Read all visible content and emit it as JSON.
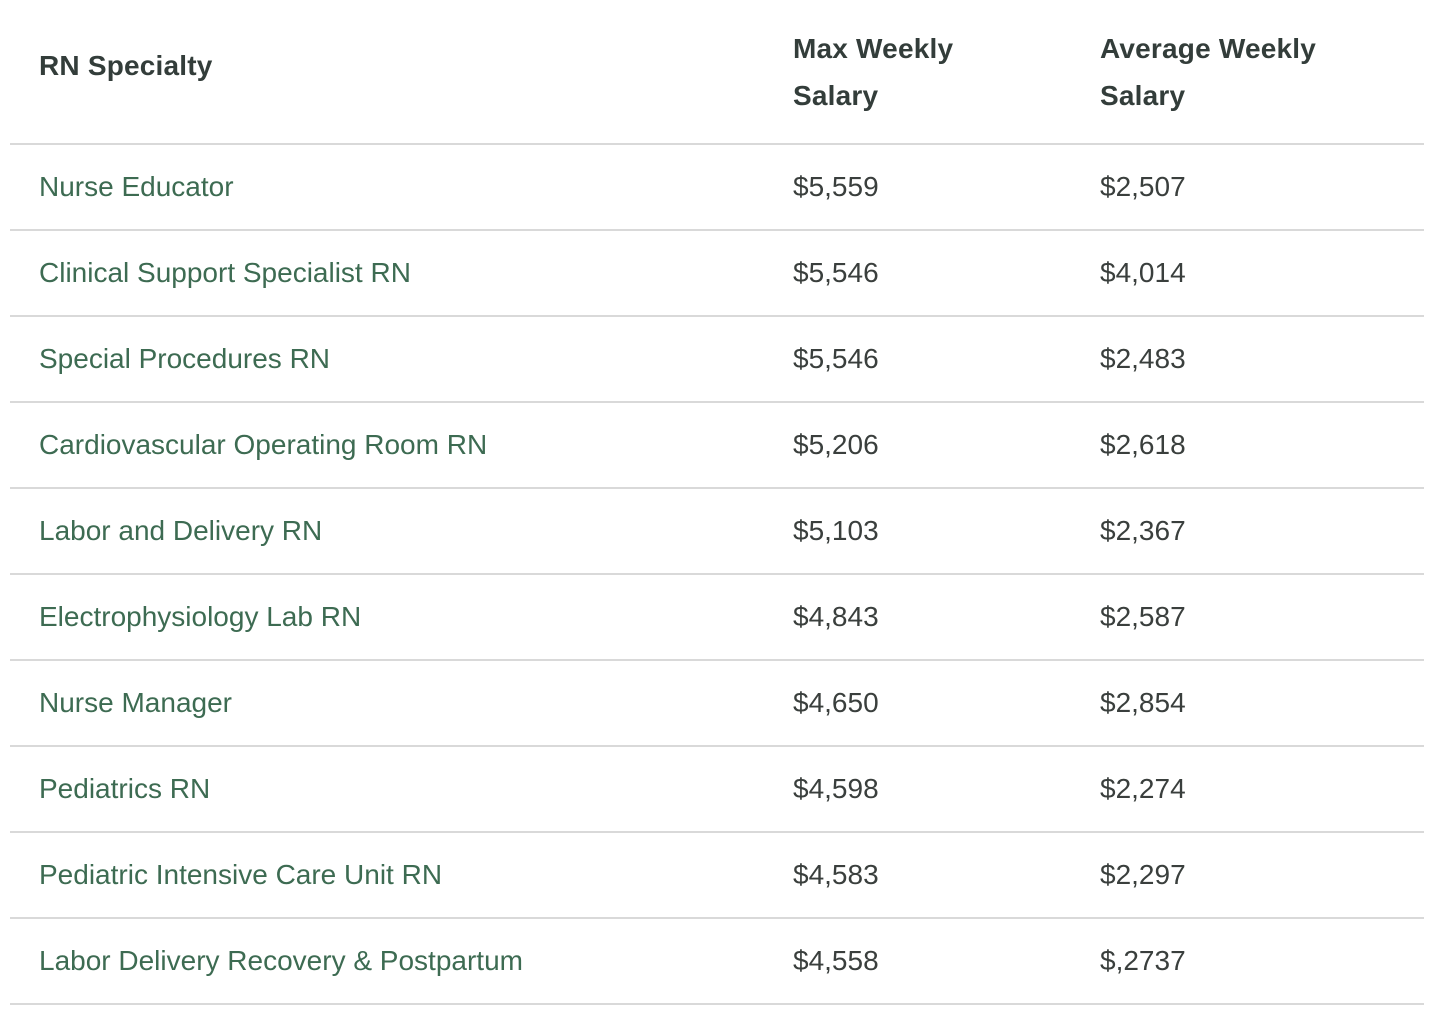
{
  "table": {
    "headers": {
      "specialty": "RN Specialty",
      "max_line1": "Max Weekly",
      "max_line2": "Salary",
      "avg_line1": "Average Weekly",
      "avg_line2": "Salary"
    },
    "rows": [
      {
        "specialty": "Nurse Educator",
        "max": "$5,559",
        "avg": "$2,507"
      },
      {
        "specialty": "Clinical Support Specialist RN",
        "max": "$5,546",
        "avg": "$4,014"
      },
      {
        "specialty": "Special Procedures RN",
        "max": "$5,546",
        "avg": "$2,483"
      },
      {
        "specialty": "Cardiovascular Operating Room RN",
        "max": "$5,206",
        "avg": "$2,618"
      },
      {
        "specialty": "Labor and Delivery RN",
        "max": "$5,103",
        "avg": "$2,367"
      },
      {
        "specialty": "Electrophysiology Lab RN",
        "max": "$4,843",
        "avg": "$2,587"
      },
      {
        "specialty": "Nurse Manager",
        "max": "$4,650",
        "avg": "$2,854"
      },
      {
        "specialty": "Pediatrics RN",
        "max": "$4,598",
        "avg": "$2,274"
      },
      {
        "specialty": "Pediatric Intensive Care Unit RN",
        "max": "$4,583",
        "avg": "$2,297"
      },
      {
        "specialty": "Labor Delivery Recovery & Postpartum",
        "max": "$4,558",
        "avg": "$,2737"
      }
    ]
  },
  "colors": {
    "header_text": "#333d3a",
    "specialty_text": "#3d6b52",
    "value_text": "#3a3f3d",
    "divider": "#d9d9d9"
  }
}
